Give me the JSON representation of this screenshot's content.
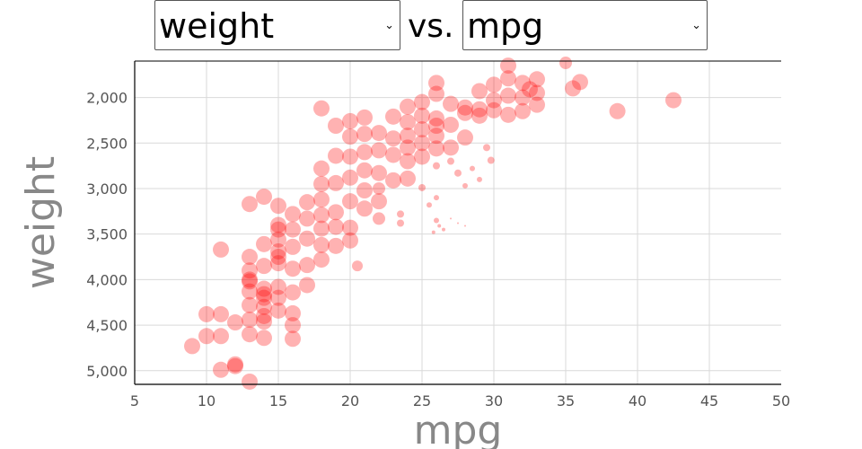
{
  "controls": {
    "y_select_value": "weight",
    "x_select_value": "mpg",
    "vs_label": "vs."
  },
  "icons": {
    "dropdown": "chevron-down-icon"
  },
  "colors": {
    "point": "#ff0000",
    "grid": "#d9d9d9",
    "axis": "#000000",
    "tick_text": "#555555",
    "title_text": "#888888"
  },
  "chart_data": {
    "type": "scatter",
    "xlabel": "mpg",
    "ylabel": "weight",
    "xlim": [
      5,
      50
    ],
    "ylim": [
      5150,
      1600
    ],
    "y_reversed": true,
    "grid": true,
    "x_ticks": [
      5,
      10,
      15,
      20,
      25,
      30,
      35,
      40,
      45,
      50
    ],
    "x_tick_labels": [
      "5",
      "10",
      "15",
      "20",
      "25",
      "30",
      "35",
      "40",
      "45",
      "50"
    ],
    "y_ticks": [
      2000,
      2500,
      3000,
      3500,
      4000,
      4500,
      5000
    ],
    "y_tick_labels": [
      "2,000",
      "2,500",
      "3,000",
      "3,500",
      "4,000",
      "4,500",
      "5,000"
    ],
    "points": [
      [
        9,
        4730,
        9
      ],
      [
        10,
        4380,
        9
      ],
      [
        10,
        4620,
        9
      ],
      [
        11,
        3670,
        9
      ],
      [
        11,
        4380,
        9
      ],
      [
        11,
        4620,
        9
      ],
      [
        11,
        4990,
        9
      ],
      [
        12,
        4950,
        9
      ],
      [
        12,
        4470,
        9
      ],
      [
        12,
        4930,
        9
      ],
      [
        13,
        3170,
        9
      ],
      [
        13,
        3750,
        9
      ],
      [
        13,
        3900,
        9
      ],
      [
        13,
        4000,
        9
      ],
      [
        13,
        4130,
        9
      ],
      [
        13,
        4280,
        9
      ],
      [
        13,
        4440,
        9
      ],
      [
        13,
        4600,
        9
      ],
      [
        13,
        5120,
        9
      ],
      [
        13,
        4020,
        9
      ],
      [
        14,
        3090,
        9
      ],
      [
        14,
        3610,
        9
      ],
      [
        14,
        3850,
        9
      ],
      [
        14,
        4100,
        9
      ],
      [
        14,
        4200,
        9
      ],
      [
        14,
        4300,
        9
      ],
      [
        14,
        4400,
        9
      ],
      [
        14,
        4460,
        9
      ],
      [
        14,
        4640,
        9
      ],
      [
        14,
        4160,
        9
      ],
      [
        15,
        3190,
        9
      ],
      [
        15,
        3400,
        9
      ],
      [
        15,
        3450,
        9
      ],
      [
        15,
        3560,
        9
      ],
      [
        15,
        3690,
        9
      ],
      [
        15,
        3750,
        9
      ],
      [
        15,
        3820,
        9
      ],
      [
        15,
        4080,
        9
      ],
      [
        15,
        4200,
        9
      ],
      [
        15,
        4340,
        9
      ],
      [
        16,
        3280,
        9
      ],
      [
        16,
        3450,
        9
      ],
      [
        16,
        3640,
        9
      ],
      [
        16,
        3880,
        9
      ],
      [
        16,
        4140,
        9
      ],
      [
        16,
        4370,
        9
      ],
      [
        16,
        4500,
        9
      ],
      [
        16,
        4650,
        9
      ],
      [
        17,
        3150,
        9
      ],
      [
        17,
        3330,
        9
      ],
      [
        17,
        3550,
        9
      ],
      [
        17,
        3840,
        9
      ],
      [
        17,
        4060,
        9
      ],
      [
        18,
        2120,
        9
      ],
      [
        18,
        2780,
        9
      ],
      [
        18,
        2950,
        9
      ],
      [
        18,
        3120,
        9
      ],
      [
        18,
        3290,
        9
      ],
      [
        18,
        3440,
        9
      ],
      [
        18,
        3620,
        9
      ],
      [
        18,
        3780,
        9
      ],
      [
        19,
        2310,
        9
      ],
      [
        19,
        2640,
        9
      ],
      [
        19,
        2940,
        9
      ],
      [
        19,
        3260,
        9
      ],
      [
        19,
        3420,
        9
      ],
      [
        19,
        3630,
        9
      ],
      [
        20,
        2260,
        9
      ],
      [
        20,
        2430,
        9
      ],
      [
        20,
        2650,
        9
      ],
      [
        20,
        2880,
        9
      ],
      [
        20,
        3140,
        9
      ],
      [
        20,
        3430,
        9
      ],
      [
        20,
        3570,
        9
      ],
      [
        21,
        2220,
        9
      ],
      [
        21,
        2400,
        9
      ],
      [
        21,
        2600,
        9
      ],
      [
        21,
        2800,
        9
      ],
      [
        21,
        3020,
        9
      ],
      [
        21,
        3220,
        9
      ],
      [
        20.5,
        3850,
        6
      ],
      [
        22,
        2390,
        9
      ],
      [
        22,
        2580,
        9
      ],
      [
        22,
        2830,
        9
      ],
      [
        22,
        3140,
        9
      ],
      [
        22,
        3330,
        7
      ],
      [
        22,
        3000,
        7
      ],
      [
        23,
        2210,
        9
      ],
      [
        23,
        2450,
        9
      ],
      [
        23,
        2630,
        9
      ],
      [
        23,
        2910,
        9
      ],
      [
        23.5,
        3280,
        4
      ],
      [
        23.5,
        3380,
        4
      ],
      [
        24,
        2100,
        9
      ],
      [
        24,
        2270,
        9
      ],
      [
        24,
        2420,
        9
      ],
      [
        24,
        2550,
        9
      ],
      [
        24,
        2700,
        9
      ],
      [
        24,
        2890,
        9
      ],
      [
        25,
        2050,
        9
      ],
      [
        25,
        2200,
        9
      ],
      [
        25,
        2350,
        9
      ],
      [
        25,
        2500,
        9
      ],
      [
        25,
        2650,
        9
      ],
      [
        25,
        2990,
        4
      ],
      [
        25.5,
        3180,
        3
      ],
      [
        26,
        1840,
        9
      ],
      [
        26,
        1960,
        9
      ],
      [
        26,
        2230,
        9
      ],
      [
        26,
        2310,
        9
      ],
      [
        26,
        2420,
        9
      ],
      [
        26,
        2560,
        9
      ],
      [
        26,
        2750,
        4
      ],
      [
        26,
        3100,
        3
      ],
      [
        26,
        3350,
        3
      ],
      [
        26.2,
        3410,
        2
      ],
      [
        25.8,
        3480,
        2
      ],
      [
        26.5,
        3450,
        2
      ],
      [
        27,
        3330,
        1
      ],
      [
        27.5,
        3380,
        1
      ],
      [
        28,
        3410,
        1
      ],
      [
        27,
        2070,
        9
      ],
      [
        27,
        2300,
        9
      ],
      [
        27,
        2550,
        9
      ],
      [
        27,
        2700,
        4
      ],
      [
        27.5,
        2830,
        4
      ],
      [
        28,
        2970,
        3
      ],
      [
        29,
        2900,
        3
      ],
      [
        28,
        2110,
        9
      ],
      [
        28,
        2170,
        9
      ],
      [
        28,
        2440,
        9
      ],
      [
        29,
        1930,
        9
      ],
      [
        29,
        2130,
        9
      ],
      [
        29,
        2200,
        9
      ],
      [
        29.5,
        2550,
        4
      ],
      [
        29.8,
        2690,
        4
      ],
      [
        28.5,
        2780,
        3
      ],
      [
        30,
        1860,
        9
      ],
      [
        30,
        2030,
        9
      ],
      [
        30,
        2140,
        9
      ],
      [
        31,
        1650,
        9
      ],
      [
        31,
        1790,
        9
      ],
      [
        31,
        1980,
        9
      ],
      [
        31,
        2190,
        9
      ],
      [
        32,
        1840,
        9
      ],
      [
        32,
        2000,
        9
      ],
      [
        32,
        2150,
        9
      ],
      [
        32.5,
        1910,
        9
      ],
      [
        33,
        1800,
        9
      ],
      [
        33,
        1950,
        9
      ],
      [
        33,
        2080,
        9
      ],
      [
        35,
        1620,
        7
      ],
      [
        35.5,
        1900,
        9
      ],
      [
        36,
        1830,
        9
      ],
      [
        38.6,
        2150,
        9
      ],
      [
        42.5,
        2030,
        9
      ]
    ],
    "point_size_note": "bubble radius (px) encodes a third variable"
  }
}
